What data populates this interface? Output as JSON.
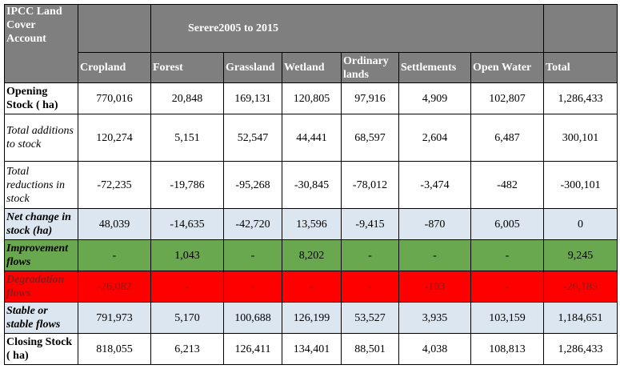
{
  "table": {
    "corner": "IPCC Land Cover Account",
    "title_prefix": "Serere",
    "title_period": "2005 to 2015",
    "columns": [
      "Cropland",
      "Forest",
      "Grassland",
      "Wetland",
      "Ordinary lands",
      "Settlements",
      "Open Water",
      "Total"
    ],
    "rows": [
      {
        "label": "Opening Stock ( ha)",
        "style": "bold",
        "color": "#ffffff",
        "values": [
          "770,016",
          "20,848",
          "169,131",
          "120,805",
          "97,916",
          "4,909",
          "102,807",
          "1,286,433"
        ]
      },
      {
        "label": "Total additions to stock",
        "style": "italic",
        "color": "#ffffff",
        "values": [
          "120,274",
          "5,151",
          "52,547",
          "44,441",
          "68,597",
          "2,604",
          "6,487",
          "300,101"
        ]
      },
      {
        "label": "Total reductions in stock",
        "style": "italic",
        "color": "#ffffff",
        "values": [
          "-72,235",
          "-19,786",
          "-95,268",
          "-30,845",
          "-78,012",
          "-3,474",
          "-482",
          "-300,101"
        ]
      },
      {
        "label": "Net change in stock (ha)",
        "style": "bold-italic",
        "color": "#dce6f1",
        "values": [
          "48,039",
          "-14,635",
          "-42,720",
          "13,596",
          "-9,415",
          "-870",
          "6,005",
          "0"
        ]
      },
      {
        "label": "Improvement flows",
        "style": "bold-italic",
        "color": "#6aa84f",
        "values": [
          "-",
          "1,043",
          "-",
          "8,202",
          "-",
          "-",
          "-",
          "9,245"
        ]
      },
      {
        "label": "Degradation flows",
        "style": "bold-italic",
        "color": "#ff0000",
        "values": [
          "-26,082",
          "-",
          "-",
          "-",
          "-",
          "-103",
          "-",
          "-26,185"
        ]
      },
      {
        "label": "Stable or stable flows",
        "style": "bold-italic",
        "color": "#dce6f1",
        "values": [
          "791,973",
          "5,170",
          "100,688",
          "126,199",
          "53,527",
          "3,935",
          "103,159",
          "1,184,651"
        ]
      },
      {
        "label": "Closing Stock ( ha)",
        "style": "bold",
        "color": "#ffffff",
        "values": [
          "818,055",
          "6,213",
          "126,411",
          "134,401",
          "88,501",
          "4,038",
          "108,813",
          "1,286,433"
        ]
      }
    ]
  }
}
